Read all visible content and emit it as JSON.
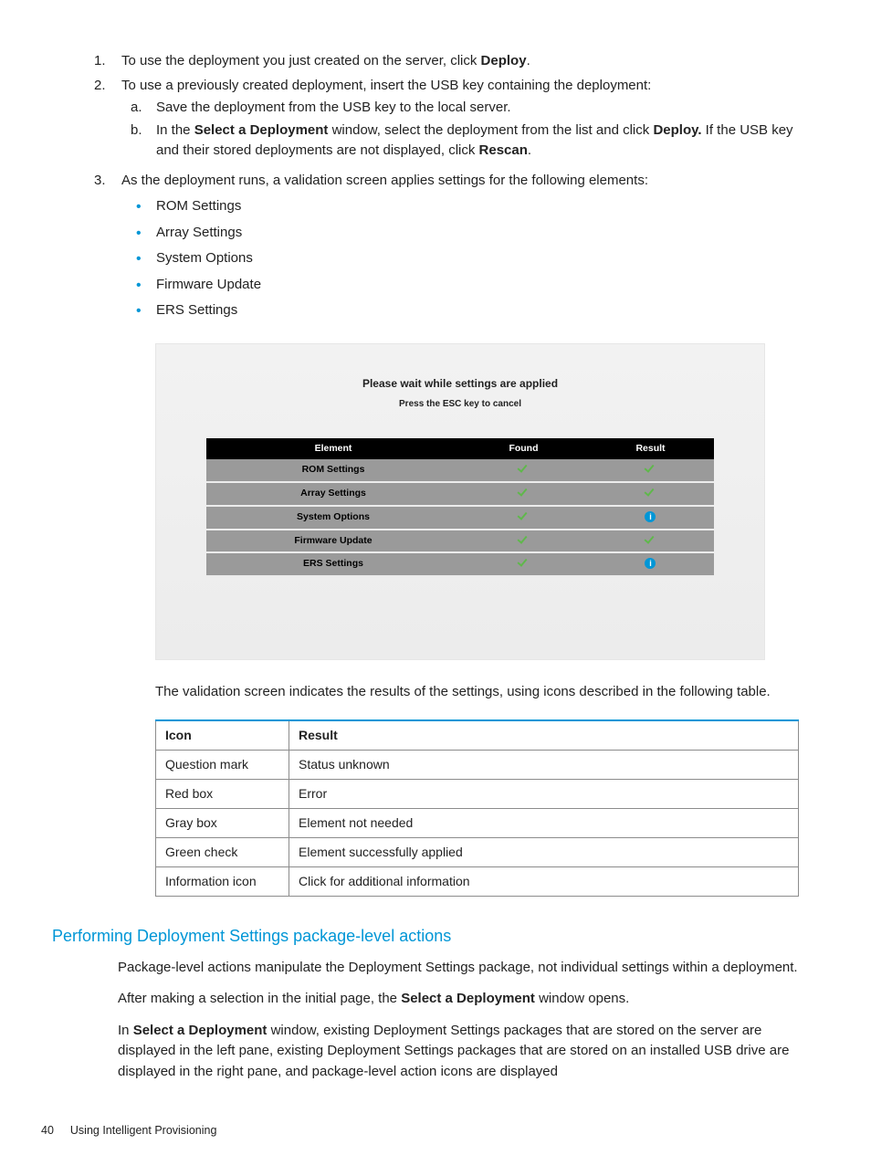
{
  "steps": {
    "s1_num": "1.",
    "s1_text_a": "To use the deployment you just created on the server, click ",
    "s1_bold": "Deploy",
    "s1_text_b": ".",
    "s2_num": "2.",
    "s2_text": "To use a previously created deployment, insert the USB key containing the deployment:",
    "s2a_letter": "a.",
    "s2a_text": "Save the deployment from the USB key to the local server.",
    "s2b_letter": "b.",
    "s2b_text_a": "In the ",
    "s2b_bold1": "Select a Deployment",
    "s2b_text_b": " window, select the deployment from the list and click ",
    "s2b_bold2": "Deploy.",
    "s2b_text_c": " If the USB key and their stored deployments are not displayed, click ",
    "s2b_bold3": "Rescan",
    "s2b_text_d": ".",
    "s3_num": "3.",
    "s3_text": "As the deployment runs, a validation screen applies settings for the following elements:",
    "bullets": [
      "ROM Settings",
      "Array Settings",
      "System Options",
      "Firmware Update",
      "ERS Settings"
    ]
  },
  "screenshot": {
    "title": "Please wait while settings are applied",
    "subtitle": "Press the ESC key to cancel",
    "headers": [
      "Element",
      "Found",
      "Result"
    ],
    "rows": [
      {
        "name": "ROM Settings",
        "found": "check",
        "result": "check"
      },
      {
        "name": "Array Settings",
        "found": "check",
        "result": "check"
      },
      {
        "name": "System Options",
        "found": "check",
        "result": "info"
      },
      {
        "name": "Firmware Update",
        "found": "check",
        "result": "check"
      },
      {
        "name": "ERS Settings",
        "found": "check",
        "result": "info"
      }
    ]
  },
  "after": "The validation screen indicates the results of the settings, using icons described in the following table.",
  "icon_table": {
    "headers": [
      "Icon",
      "Result"
    ],
    "rows": [
      [
        "Question mark",
        "Status unknown"
      ],
      [
        "Red box",
        "Error"
      ],
      [
        "Gray box",
        "Element not needed"
      ],
      [
        "Green check",
        "Element successfully applied"
      ],
      [
        "Information icon",
        "Click for additional information"
      ]
    ]
  },
  "subhead": "Performing Deployment Settings package-level actions",
  "p1": "Package-level actions manipulate the Deployment Settings package, not individual settings within a deployment.",
  "p2_a": "After making a selection in the initial page, the ",
  "p2_bold": "Select a Deployment",
  "p2_b": " window opens.",
  "p3_a": "In ",
  "p3_bold": "Select a Deployment",
  "p3_b": " window, existing Deployment Settings packages that are stored on the server are displayed in the left pane, existing Deployment Settings packages that are stored on an installed USB drive are displayed in the right pane, and package-level action icons are displayed",
  "footer": {
    "page": "40",
    "title": "Using Intelligent Provisioning"
  }
}
